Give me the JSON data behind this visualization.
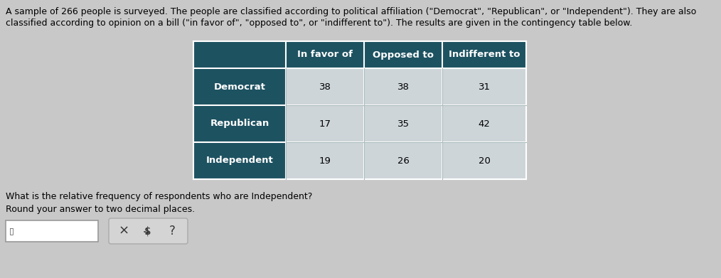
{
  "intro_line1": "A sample of 266 people is surveyed. The people are classified according to political affiliation (\"Democrat\", \"Republican\", or \"Independent\"). They are also",
  "intro_line2": "classified according to opinion on a bill (\"in favor of\", \"opposed to\", or \"indifferent to\"). The results are given in the contingency table below.",
  "question_text": "What is the relative frequency of respondents who are Independent?",
  "round_text": "Round your answer to two decimal places.",
  "col_headers": [
    "In favor of",
    "Opposed to",
    "Indifferent to"
  ],
  "row_headers": [
    "Democrat",
    "Republican",
    "Independent"
  ],
  "data": [
    [
      38,
      38,
      31
    ],
    [
      17,
      35,
      42
    ],
    [
      19,
      26,
      20
    ]
  ],
  "header_bg": "#1d5261",
  "header_text_color": "#ffffff",
  "row_header_bg": "#1d5261",
  "row_header_text_color": "#ffffff",
  "cell_bg": "#cdd5d9",
  "table_line_color": "#aabbbb",
  "bg_color": "#c8c8c8",
  "input_box_color": "#ffffff",
  "button_color": "#d4d4d4",
  "intro_fontsize": 9.0,
  "table_fontsize": 9.5,
  "question_fontsize": 9.0
}
